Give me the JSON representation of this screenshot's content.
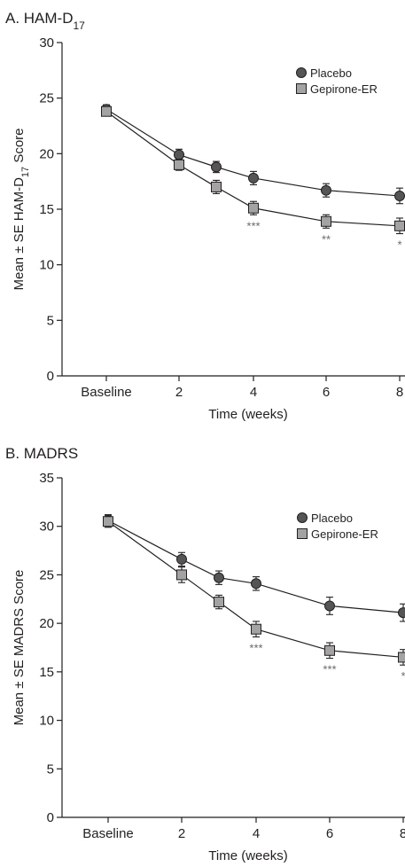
{
  "chart_data": [
    {
      "type": "line",
      "panel_title": "A. HAM-D",
      "panel_title_sub": "17",
      "title": "",
      "xlabel": "Time (weeks)",
      "ylabel": "Mean ± SE HAM-D",
      "ylabel_sub": "17",
      "ylabel_suffix": " Score",
      "categories": [
        "Baseline",
        "2",
        "3",
        "4",
        "6",
        "8"
      ],
      "x_tick_labels": [
        "Baseline",
        "2",
        "4",
        "6",
        "8"
      ],
      "ylim": [
        0,
        30
      ],
      "y_ticks": [
        "0",
        "5",
        "10",
        "15",
        "20",
        "25",
        "30"
      ],
      "legend_position": "top-right",
      "series": [
        {
          "name": "Placebo",
          "marker": "circle",
          "color": "#555555",
          "values": [
            24.0,
            19.9,
            18.8,
            17.8,
            16.7,
            16.2
          ],
          "se": [
            0.4,
            0.5,
            0.5,
            0.6,
            0.6,
            0.7
          ]
        },
        {
          "name": "Gepirone-ER",
          "marker": "square",
          "color": "#a3a3a3",
          "values": [
            23.8,
            19.0,
            17.0,
            15.1,
            13.9,
            13.5
          ],
          "se": [
            0.4,
            0.5,
            0.6,
            0.6,
            0.6,
            0.7
          ]
        }
      ],
      "significance": [
        {
          "category": "4",
          "label": "***"
        },
        {
          "category": "6",
          "label": "**"
        },
        {
          "category": "8",
          "label": "*"
        }
      ]
    },
    {
      "type": "line",
      "panel_title": "B. MADRS",
      "panel_title_sub": "",
      "title": "",
      "xlabel": "Time (weeks)",
      "ylabel": "Mean ± SE MADRS Score",
      "ylabel_sub": "",
      "ylabel_suffix": "",
      "categories": [
        "Baseline",
        "2",
        "3",
        "4",
        "6",
        "8"
      ],
      "x_tick_labels": [
        "Baseline",
        "2",
        "4",
        "6",
        "8"
      ],
      "ylim": [
        0,
        35
      ],
      "y_ticks": [
        "0",
        "5",
        "10",
        "15",
        "20",
        "25",
        "30",
        "35"
      ],
      "legend_position": "top-right",
      "series": [
        {
          "name": "Placebo",
          "marker": "circle",
          "color": "#555555",
          "values": [
            30.6,
            26.6,
            24.7,
            24.1,
            21.8,
            21.1
          ],
          "se": [
            0.6,
            0.7,
            0.7,
            0.7,
            0.9,
            0.9
          ]
        },
        {
          "name": "Gepirone-ER",
          "marker": "square",
          "color": "#a3a3a3",
          "values": [
            30.5,
            25.0,
            22.2,
            19.4,
            17.2,
            16.5
          ],
          "se": [
            0.6,
            0.8,
            0.7,
            0.8,
            0.8,
            0.8
          ]
        }
      ],
      "significance": [
        {
          "category": "4",
          "label": "***"
        },
        {
          "category": "6",
          "label": "***"
        },
        {
          "category": "8",
          "label": "*"
        }
      ]
    }
  ]
}
